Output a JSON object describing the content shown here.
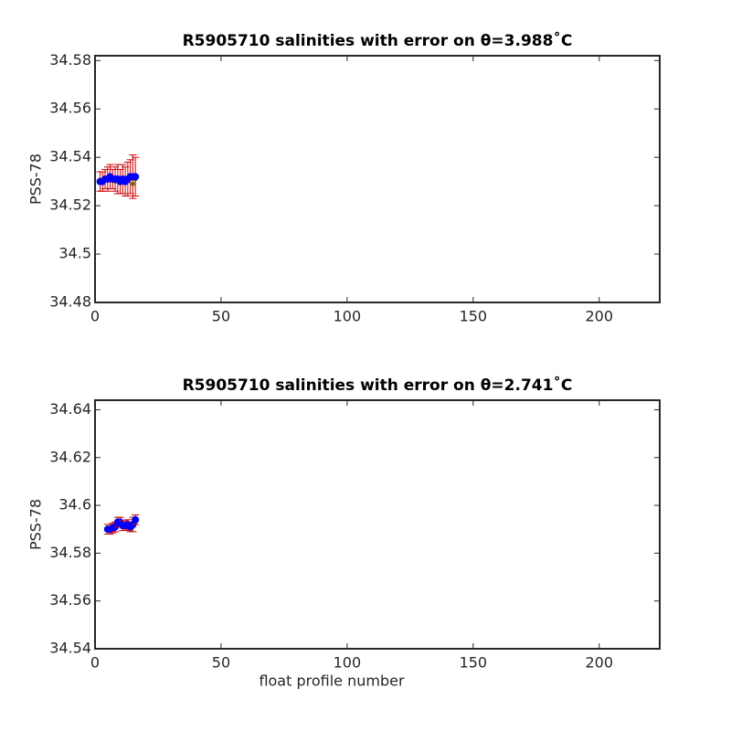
{
  "chart_data": [
    {
      "type": "scatter",
      "title": "R5905710 salinities with error on θ=3.988˚C",
      "ylabel": "PSS-78",
      "xlim": [
        0,
        224
      ],
      "xticks": [
        0,
        50,
        100,
        150,
        200
      ],
      "ylim": [
        34.48,
        34.582
      ],
      "yticks": [
        34.48,
        34.5,
        34.52,
        34.54,
        34.56,
        34.58
      ],
      "series": [
        {
          "color": "#2ca02c",
          "x": [
            2,
            3,
            4,
            5,
            6,
            7,
            8,
            9,
            10,
            11,
            12,
            13,
            14,
            15,
            16
          ],
          "values": [
            34.53,
            34.53,
            34.531,
            34.531,
            34.531,
            34.531,
            34.53,
            34.531,
            34.53,
            34.53,
            34.53,
            34.53,
            34.531,
            34.529,
            34.531
          ]
        },
        {
          "color": "#0000ff",
          "error_color": "#d00000",
          "x": [
            2,
            3,
            4,
            5,
            6,
            7,
            8,
            9,
            10,
            11,
            12,
            13,
            14,
            15,
            16
          ],
          "values": [
            34.53,
            34.53,
            34.531,
            34.531,
            34.532,
            34.531,
            34.531,
            34.531,
            34.53,
            34.531,
            34.53,
            34.531,
            34.532,
            34.532,
            34.532
          ],
          "errors": [
            0.004,
            0.004,
            0.004,
            0.005,
            0.005,
            0.004,
            0.005,
            0.006,
            0.005,
            0.006,
            0.006,
            0.007,
            0.007,
            0.009,
            0.008
          ]
        }
      ]
    },
    {
      "type": "scatter",
      "title": "R5905710 salinities with error on θ=2.741˚C",
      "ylabel": "PSS-78",
      "xlabel": "float profile number",
      "xlim": [
        0,
        224
      ],
      "xticks": [
        0,
        50,
        100,
        150,
        200
      ],
      "ylim": [
        34.54,
        34.644
      ],
      "yticks": [
        34.54,
        34.56,
        34.58,
        34.6,
        34.62,
        34.64
      ],
      "series": [
        {
          "color": "#2ca02c",
          "x": [
            5,
            6,
            7,
            8,
            9,
            10,
            11,
            12,
            13,
            14,
            15,
            16
          ],
          "values": [
            34.59,
            34.59,
            34.591,
            34.591,
            34.592,
            34.592,
            34.591,
            34.591,
            34.591,
            34.59,
            34.591,
            34.593
          ]
        },
        {
          "color": "#0000ff",
          "error_color": "#d00000",
          "x": [
            5,
            6,
            7,
            8,
            9,
            10,
            11,
            12,
            13,
            14,
            15,
            16
          ],
          "values": [
            34.59,
            34.59,
            34.5905,
            34.591,
            34.593,
            34.593,
            34.5915,
            34.5915,
            34.592,
            34.591,
            34.592,
            34.594
          ],
          "errors": [
            0.002,
            0.002,
            0.002,
            0.002,
            0.002,
            0.002,
            0.002,
            0.002,
            0.002,
            0.002,
            0.003,
            0.002
          ]
        }
      ]
    }
  ]
}
